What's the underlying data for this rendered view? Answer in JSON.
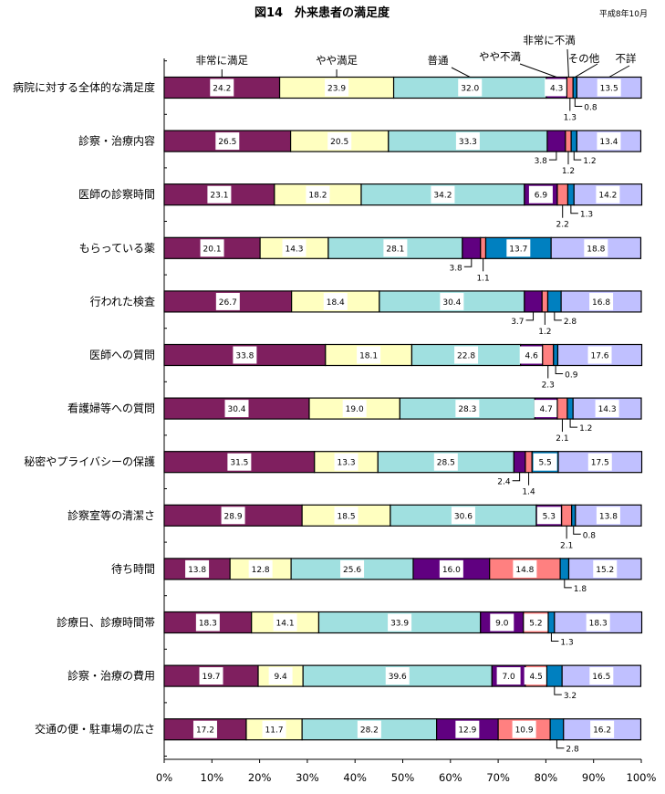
{
  "chart_data": {
    "type": "bar",
    "orientation": "horizontal",
    "stacked": "percent",
    "title": "図14　外来患者の満足度",
    "subtitle": "平成8年10月",
    "xlabel": "",
    "ylabel": "",
    "xlim": [
      0,
      100
    ],
    "x_ticks": [
      "0%",
      "10%",
      "20%",
      "30%",
      "40%",
      "50%",
      "60%",
      "70%",
      "80%",
      "90%",
      "100%"
    ],
    "grid": false,
    "legend_placement": "top (callout labels above first bar)",
    "categories": [
      "病院に対する全体的な満足度",
      "診察・治療内容",
      "医師の診察時間",
      "もらっている薬",
      "行われた検査",
      "医師への質問",
      "看護婦等への質問",
      "秘密やプライバシーの保護",
      "診察室等の清潔さ",
      "待ち時間",
      "診療日、診療時間帯",
      "診察・治療の費用",
      "交通の便・駐車場の広さ"
    ],
    "series": [
      {
        "name": "非常に満足",
        "color": "#7F1F5F",
        "values": [
          24.2,
          26.5,
          23.1,
          20.1,
          26.7,
          33.8,
          30.4,
          31.5,
          28.9,
          13.8,
          18.3,
          19.7,
          17.2
        ]
      },
      {
        "name": "やや満足",
        "color": "#FFFFC0",
        "values": [
          23.9,
          20.5,
          18.2,
          14.3,
          18.4,
          18.1,
          19.0,
          13.3,
          18.5,
          12.8,
          14.1,
          9.4,
          11.7
        ]
      },
      {
        "name": "普通",
        "color": "#A0E0E0",
        "values": [
          32.0,
          33.3,
          34.2,
          28.1,
          30.4,
          22.8,
          28.3,
          28.5,
          30.6,
          25.6,
          33.9,
          39.6,
          28.2
        ]
      },
      {
        "name": "やや不満",
        "color": "#600080",
        "values": [
          4.3,
          3.8,
          6.9,
          3.8,
          3.7,
          4.6,
          4.7,
          2.4,
          5.3,
          16.0,
          9.0,
          7.0,
          12.9
        ]
      },
      {
        "name": "非常に不満",
        "color": "#FF8080",
        "values": [
          1.3,
          1.2,
          2.2,
          1.1,
          1.2,
          2.3,
          2.1,
          1.4,
          2.1,
          14.8,
          5.2,
          4.5,
          10.9
        ]
      },
      {
        "name": "その他",
        "color": "#0080C0",
        "values": [
          0.8,
          1.2,
          1.3,
          13.7,
          2.8,
          0.9,
          1.2,
          5.5,
          0.8,
          1.8,
          1.3,
          3.2,
          2.8
        ]
      },
      {
        "name": "不詳",
        "color": "#C0C0FF",
        "values": [
          13.5,
          13.4,
          14.2,
          18.8,
          16.8,
          17.6,
          14.3,
          17.5,
          13.8,
          15.2,
          18.3,
          16.5,
          16.2
        ]
      }
    ],
    "data_labels": [
      [
        "24.2",
        "23.9",
        "32.0",
        "4.3",
        "1.3",
        "0.8",
        "13.5"
      ],
      [
        "26.5",
        "20.5",
        "33.3",
        "3.8",
        "1.2",
        "1.2",
        "13.4"
      ],
      [
        "23.1",
        "18.2",
        "34.2",
        "6.9",
        "2.2",
        "1.3",
        "14.2"
      ],
      [
        "20.1",
        "14.3",
        "28.1",
        "3.8",
        "1.1",
        "13.7",
        "18.8"
      ],
      [
        "26.7",
        "18.4",
        "30.4",
        "3.7",
        "1.2",
        "2.8",
        "16.8"
      ],
      [
        "33.8",
        "18.1",
        "22.8",
        "4.6",
        "2.3",
        "0.9",
        "17.6"
      ],
      [
        "30.4",
        "19.0",
        "28.3",
        "4.7",
        "2.1",
        "1.2",
        "14.3"
      ],
      [
        "31.5",
        "13.3",
        "28.5",
        "2.4",
        "1.4",
        "5.5",
        "17.5"
      ],
      [
        "28.9",
        "18.5",
        "30.6",
        "5.3",
        "2.1",
        "0.8",
        "13.8"
      ],
      [
        "13.8",
        "12.8",
        "25.6",
        "16.0",
        "14.8",
        "1.8",
        "15.2"
      ],
      [
        "18.3",
        "14.1",
        "33.9",
        "9.0",
        "5.2",
        "1.3",
        "18.3"
      ],
      [
        "19.7",
        "9.4",
        "39.6",
        "7.0",
        "4.5",
        "3.2",
        "16.5"
      ],
      [
        "17.2",
        "11.7",
        "28.2",
        "12.9",
        "10.9",
        "2.8",
        "16.2"
      ]
    ]
  }
}
